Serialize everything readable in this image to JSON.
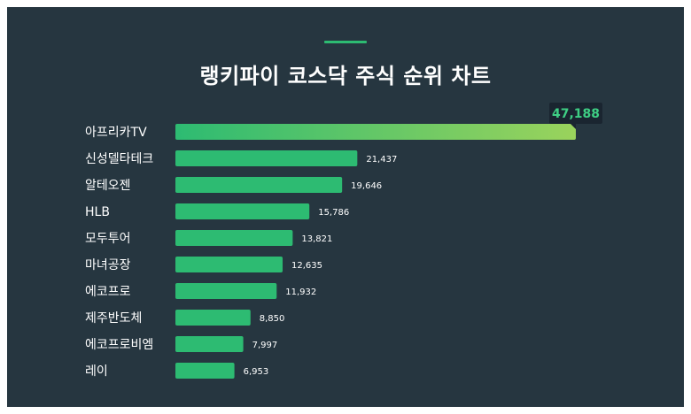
{
  "title": "랭키파이 코스닥 주식 순위 차트",
  "colors": {
    "background": "#263640",
    "bar": "#2dbb72",
    "bar_gradient_end": "#9ad35c",
    "accent": "#2dbb72",
    "callout_bg": "#1a2530",
    "callout_text": "#3ecf84",
    "text": "#ffffff"
  },
  "chart_data": {
    "type": "bar",
    "orientation": "horizontal",
    "title": "랭키파이 코스닥 주식 순위 차트",
    "categories": [
      "아프리카TV",
      "신성델타테크",
      "알테오젠",
      "HLB",
      "모두투어",
      "마녀공장",
      "에코프로",
      "제주반도체",
      "에코프로비엠",
      "레이"
    ],
    "values": [
      47188,
      21437,
      19646,
      15786,
      13821,
      12635,
      11932,
      8850,
      7997,
      6953
    ],
    "value_labels": [
      "47,188",
      "21,437",
      "19,646",
      "15,786",
      "13,821",
      "12,635",
      "11,932",
      "8,850",
      "7,997",
      "6,953"
    ],
    "highlight_index": 0,
    "xlim": [
      0,
      47188
    ],
    "grid": false,
    "legend": "none"
  }
}
